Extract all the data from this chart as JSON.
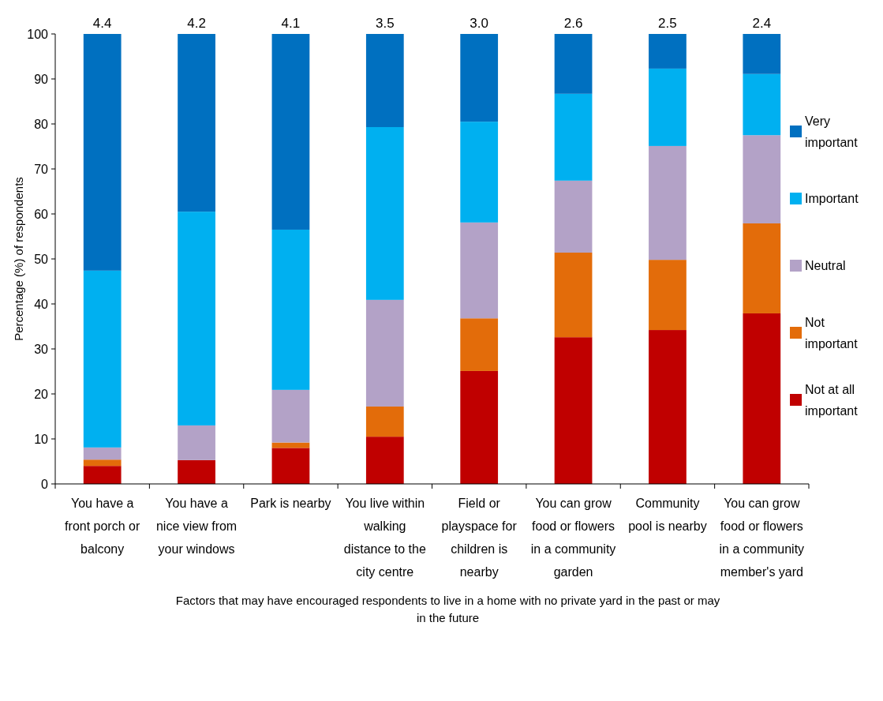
{
  "chart_data": {
    "type": "bar",
    "stacked": true,
    "xlabel": "Factors that may have encouraged respondents to live in a home with no private yard in the past or may in the future",
    "ylabel": "Percentage (%) of respondents",
    "categories": [
      "You have a front porch or balcony",
      "You have a nice view from your windows",
      "Park is nearby",
      "You live within walking distance to the city centre",
      "Field or playspace for children is nearby",
      "You can grow food or flowers in a community garden",
      "Community pool is nearby",
      "You can grow food or flowers in a community member's yard"
    ],
    "series": [
      {
        "name": "Not at all important",
        "color": "#c00000",
        "values": [
          4.0,
          5.3,
          8.0,
          10.5,
          25.1,
          32.6,
          34.2,
          37.9
        ]
      },
      {
        "name": "Not important",
        "color": "#e36c0a",
        "values": [
          1.4,
          0,
          1.2,
          6.7,
          11.7,
          18.8,
          15.6,
          20.0
        ]
      },
      {
        "name": "Neutral",
        "color": "#b3a2c7",
        "values": [
          2.7,
          7.7,
          11.7,
          23.7,
          21.3,
          16.0,
          25.3,
          19.6
        ]
      },
      {
        "name": "Important",
        "color": "#00b0f0",
        "values": [
          39.3,
          47.5,
          35.6,
          38.4,
          22.4,
          19.3,
          17.2,
          13.6
        ]
      },
      {
        "name": "Very important",
        "color": "#0070c0",
        "values": [
          52.6,
          39.5,
          43.5,
          20.7,
          19.5,
          13.3,
          7.7,
          8.9
        ]
      }
    ],
    "annotations": [
      {
        "text": "4.4",
        "x": "You have a front porch or balcony",
        "y": 100
      },
      {
        "text": "4.2",
        "x": "You have a nice view from your windows",
        "y": 100
      },
      {
        "text": "4.1",
        "x": "Park is nearby",
        "y": 100
      },
      {
        "text": "3.5",
        "x": "You live within walking distance to the city centre",
        "y": 100
      },
      {
        "text": "3.0",
        "x": "Field or playspace for children is nearby",
        "y": 100
      },
      {
        "text": "2.6",
        "x": "You can grow food or flowers in a community garden",
        "y": 100
      },
      {
        "text": "2.5",
        "x": "Community pool is nearby",
        "y": 100
      },
      {
        "text": "2.4",
        "x": "You can grow food or flowers in a community member's yard",
        "y": 100
      }
    ],
    "ylim": [
      0,
      100
    ],
    "yticks": [
      0,
      10,
      20,
      30,
      40,
      50,
      60,
      70,
      80,
      90,
      100
    ],
    "grid": false,
    "legend": "right"
  }
}
